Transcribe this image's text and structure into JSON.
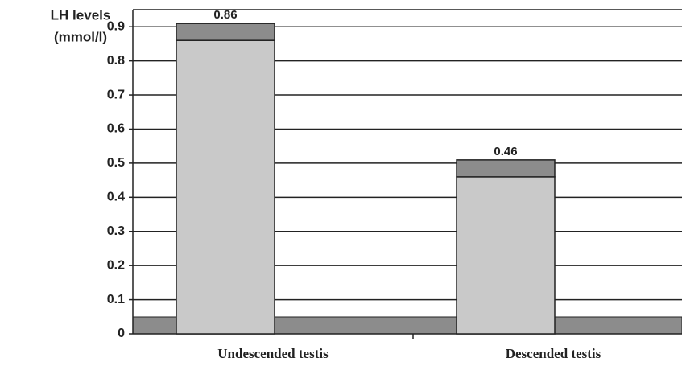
{
  "chart_data": {
    "type": "bar",
    "y_label": [
      "LH levels",
      "(mmol/l)"
    ],
    "categories": [
      "Undescended testis",
      "Descended testis"
    ],
    "values": [
      0.86,
      0.46
    ],
    "color": "#c9c9c9",
    "ylim": [
      0,
      0.95
    ],
    "yticks": [
      0,
      0.1,
      0.2,
      0.3,
      0.4,
      0.5,
      0.6,
      0.7,
      0.8,
      0.9
    ],
    "grid": true
  }
}
